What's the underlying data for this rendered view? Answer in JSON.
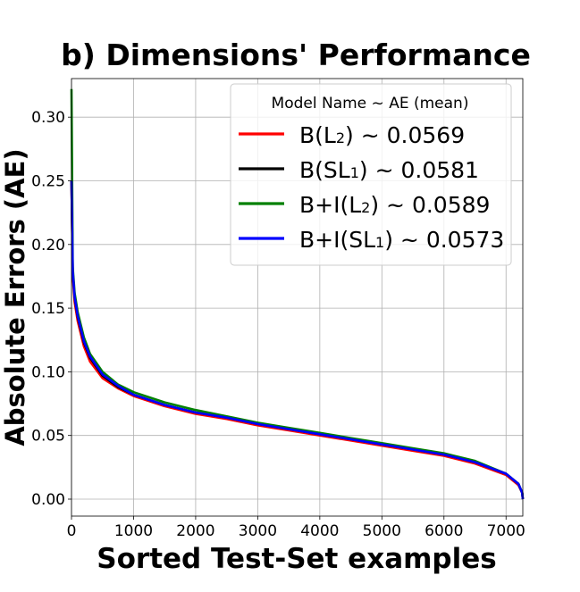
{
  "chart_data": {
    "type": "line",
    "title": "b) Dimensions' Performance",
    "xlabel": "Sorted Test-Set examples",
    "ylabel": "Absolute Errors (AE)",
    "xlim": [
      0,
      7270
    ],
    "ylim": [
      -0.012,
      0.335
    ],
    "grid": true,
    "legend_position": "upper right",
    "legend_title": "Model Name ~ AE (mean)",
    "x_ticks": [
      0,
      1000,
      2000,
      3000,
      4000,
      5000,
      6000,
      7000
    ],
    "x_tick_labels": [
      "0",
      "1000",
      "2000",
      "3000",
      "4000",
      "5000",
      "6000",
      "7000"
    ],
    "y_ticks": [
      0.0,
      0.05,
      0.1,
      0.15,
      0.2,
      0.25,
      0.3
    ],
    "y_tick_labels": [
      "0.00",
      "0.05",
      "0.10",
      "0.15",
      "0.20",
      "0.25",
      "0.30"
    ],
    "x": [
      0,
      20,
      50,
      100,
      200,
      300,
      500,
      750,
      1000,
      1500,
      2000,
      2500,
      3000,
      3500,
      4000,
      4500,
      5000,
      5500,
      6000,
      6500,
      7000,
      7200,
      7260,
      7270
    ],
    "series": [
      {
        "name": "B(L₂) ~ 0.0569",
        "color": "#ff0000",
        "values": [
          0.25,
          0.175,
          0.155,
          0.14,
          0.12,
          0.108,
          0.095,
          0.087,
          0.081,
          0.073,
          0.067,
          0.063,
          0.058,
          0.054,
          0.05,
          0.046,
          0.042,
          0.038,
          0.034,
          0.028,
          0.019,
          0.011,
          0.005,
          0.0
        ]
      },
      {
        "name": "B(SL₁) ~ 0.0581",
        "color": "#000000",
        "values": [
          0.25,
          0.178,
          0.158,
          0.143,
          0.123,
          0.111,
          0.097,
          0.088,
          0.082,
          0.074,
          0.068,
          0.064,
          0.059,
          0.055,
          0.051,
          0.047,
          0.043,
          0.039,
          0.035,
          0.029,
          0.02,
          0.012,
          0.005,
          0.0
        ]
      },
      {
        "name": "B+I(L₂) ~ 0.0589",
        "color": "#008000",
        "values": [
          0.322,
          0.182,
          0.162,
          0.147,
          0.127,
          0.114,
          0.1,
          0.09,
          0.084,
          0.076,
          0.07,
          0.065,
          0.06,
          0.056,
          0.052,
          0.048,
          0.044,
          0.04,
          0.036,
          0.03,
          0.02,
          0.012,
          0.005,
          0.0
        ]
      },
      {
        "name": "B+I(SL₁) ~ 0.0573",
        "color": "#0000ff",
        "values": [
          0.25,
          0.179,
          0.159,
          0.144,
          0.124,
          0.112,
          0.098,
          0.089,
          0.082,
          0.074,
          0.068,
          0.064,
          0.059,
          0.055,
          0.051,
          0.047,
          0.043,
          0.039,
          0.035,
          0.029,
          0.02,
          0.012,
          0.005,
          0.0
        ]
      }
    ]
  },
  "legend": {
    "title": "Model Name ~ AE (mean)",
    "items": [
      {
        "prefix": "B(L",
        "sub": "2",
        "suffix": ") ~ 0.0569",
        "color": "#ff0000"
      },
      {
        "prefix": "B(SL",
        "sub": "1",
        "suffix": ") ~ 0.0581",
        "color": "#000000"
      },
      {
        "prefix": "B+I(L",
        "sub": "2",
        "suffix": ") ~ 0.0589",
        "color": "#008000"
      },
      {
        "prefix": "B+I(SL",
        "sub": "1",
        "suffix": ") ~ 0.0573",
        "color": "#0000ff"
      }
    ]
  }
}
